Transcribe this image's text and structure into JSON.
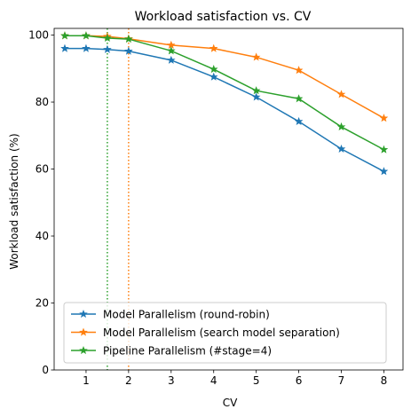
{
  "chart_data": {
    "type": "line",
    "title": "Workload satisfaction vs. CV",
    "xlabel": "CV",
    "ylabel": "Workload satisfaction (%)",
    "xlim": [
      0.25,
      8.45
    ],
    "ylim": [
      0,
      102
    ],
    "xticks": [
      1,
      2,
      3,
      4,
      5,
      6,
      7,
      8
    ],
    "yticks": [
      0,
      20,
      40,
      60,
      80,
      100
    ],
    "grid": false,
    "legend_position": "lower-left",
    "x": [
      0.5,
      1,
      1.5,
      2,
      3,
      4,
      5,
      6,
      7,
      8
    ],
    "series": [
      {
        "name": "Model Parallelism (round-robin)",
        "color": "#1f77b4",
        "marker": "star",
        "values": [
          96.0,
          96.0,
          95.7,
          95.2,
          92.5,
          87.5,
          81.5,
          74.2,
          66.0,
          59.3
        ]
      },
      {
        "name": "Model Parallelism (search model separation)",
        "color": "#ff7f0e",
        "marker": "star",
        "values": [
          99.8,
          99.8,
          99.6,
          98.9,
          97.0,
          96.0,
          93.4,
          89.5,
          82.3,
          75.2
        ]
      },
      {
        "name": "Pipeline Parallelism (#stage=4)",
        "color": "#2ca02c",
        "marker": "star",
        "values": [
          99.8,
          99.8,
          99.1,
          98.8,
          95.3,
          89.8,
          83.4,
          81.0,
          72.6,
          65.8
        ]
      }
    ],
    "vlines": [
      {
        "x": 1.5,
        "color": "#2ca02c",
        "style": "dotted"
      },
      {
        "x": 2.0,
        "color": "#ff7f0e",
        "style": "dotted"
      }
    ]
  }
}
